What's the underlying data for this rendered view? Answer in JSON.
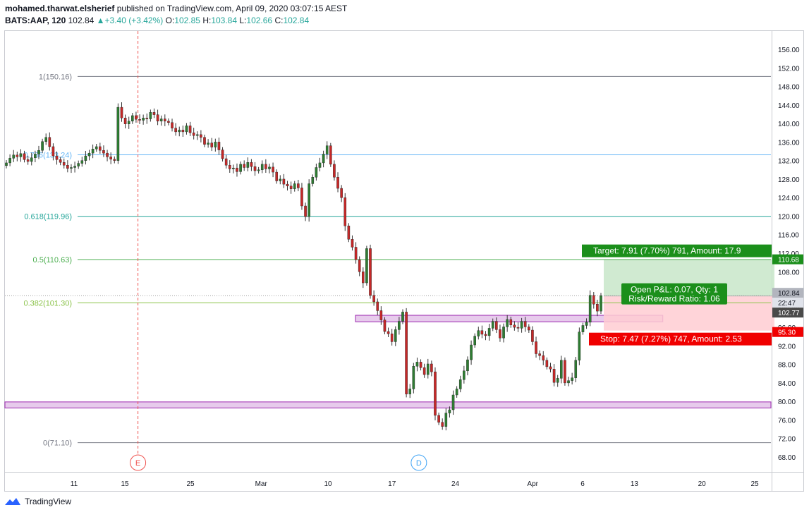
{
  "header": {
    "author": "mohamed.tharwat.elsherief",
    "published": " published on TradingView.com, April 09, 2020 03:07:15 AEST",
    "symbol": "BATS:AAP, 120",
    "last": "102.84",
    "change": "+3.40 (+3.42%)",
    "o_label": "O:",
    "o": "102.85",
    "h_label": "H:",
    "h": "103.84",
    "l_label": "L:",
    "l": "102.66",
    "c_label": "C:",
    "c": "102.84"
  },
  "footer": {
    "brand": "TradingView"
  },
  "colors": {
    "up": "#26a69a",
    "down": "#ef5350",
    "body_up": "#2e7d32",
    "body_down": "#c62828",
    "fib_1": "#787b86",
    "fib_786": "#64b5f6",
    "fib_618": "#26a69a",
    "fib_5": "#4caf50",
    "fib_382": "#8bc34a",
    "fib_0": "#787b86",
    "zone": "#e1bee7",
    "target": "#1b8f1b",
    "stop": "#f00000"
  },
  "chart_data": {
    "type": "candlestick",
    "title": "",
    "ylim": [
      64,
      158
    ],
    "y_ticks": [
      "68.00",
      "72.00",
      "76.00",
      "80.00",
      "84.00",
      "88.00",
      "92.00",
      "96.00",
      "100.00",
      "104.00",
      "108.00",
      "112.00",
      "116.00",
      "120.00",
      "124.00",
      "128.00",
      "132.00",
      "136.00",
      "140.00",
      "144.00",
      "148.00",
      "152.00",
      "156.00"
    ],
    "x_ticks": [
      {
        "label": "11",
        "date": "2020-02-11"
      },
      {
        "label": "15",
        "date": "2020-02-15"
      },
      {
        "label": "25",
        "date": "2020-02-25"
      },
      {
        "label": "Mar",
        "date": "2020-03-01"
      },
      {
        "label": "10",
        "date": "2020-03-10"
      },
      {
        "label": "17",
        "date": "2020-03-17"
      },
      {
        "label": "24",
        "date": "2020-03-24"
      },
      {
        "label": "Apr",
        "date": "2020-04-01"
      },
      {
        "label": "6",
        "date": "2020-04-06"
      },
      {
        "label": "13",
        "date": "2020-04-13"
      },
      {
        "label": "20",
        "date": "2020-04-20"
      },
      {
        "label": "25",
        "date": "2020-04-25"
      }
    ],
    "closes": [
      131.5,
      132.5,
      133.2,
      132.8,
      133.5,
      132.2,
      131.8,
      132.6,
      133.4,
      134.2,
      136.1,
      137.0,
      135.0,
      133.0,
      132.2,
      131.6,
      131.0,
      130.3,
      130.5,
      130.8,
      131.4,
      132.0,
      133.0,
      133.6,
      134.5,
      135.0,
      134.2,
      133.6,
      132.8,
      132.3,
      132.0,
      143.5,
      141.2,
      139.9,
      140.5,
      141.7,
      140.9,
      140.7,
      141.2,
      141.0,
      142.4,
      141.9,
      140.5,
      141.0,
      140.5,
      140.2,
      139.0,
      138.2,
      138.6,
      138.2,
      139.5,
      138.0,
      137.4,
      137.6,
      137.0,
      135.5,
      135.8,
      134.9,
      136.0,
      134.3,
      132.4,
      131.0,
      130.2,
      130.4,
      129.6,
      131.2,
      130.5,
      131.6,
      130.7,
      129.8,
      130.0,
      131.2,
      130.2,
      130.6,
      129.5,
      127.6,
      128.0,
      126.9,
      126.5,
      125.9,
      127.0,
      126.1,
      122.2,
      119.9,
      127.0,
      128.4,
      130.5,
      131.5,
      133.4,
      135.2,
      131.2,
      128.4,
      126.0,
      124.0,
      117.9,
      115.0,
      113.3,
      110.6,
      108.0,
      105.6,
      113.0,
      102.9,
      101.5,
      99.6,
      97.6,
      95.1,
      94.6,
      92.9,
      95.5,
      97.3,
      99.3,
      81.6,
      82.7,
      87.6,
      88.5,
      87.3,
      85.8,
      88.1,
      86.4,
      77.0,
      75.5,
      74.6,
      77.5,
      78.2,
      81.4,
      82.7,
      84.7,
      86.6,
      89.0,
      92.2,
      94.1,
      95.3,
      94.5,
      94.2,
      95.8,
      97.3,
      95.5,
      93.7,
      96.1,
      97.7,
      96.5,
      96.0,
      95.8,
      97.3,
      96.1,
      95.4,
      92.9,
      90.3,
      89.9,
      88.9,
      87.5,
      87.0,
      84.1,
      85.0,
      88.9,
      84.0,
      84.5,
      85.1,
      88.9,
      95.0,
      96.4,
      97.1,
      102.9,
      101.0,
      99.5,
      102.84
    ],
    "fib_levels": [
      {
        "label": "1(150.16)",
        "value": 150.16
      },
      {
        "label": "0.786(133.24)",
        "value": 133.24
      },
      {
        "label": "0.618(119.96)",
        "value": 119.96
      },
      {
        "label": "0.5(110.63)",
        "value": 110.63
      },
      {
        "label": "0.382(101.30)",
        "value": 101.3
      },
      {
        "label": "0(71.10)",
        "value": 71.1
      }
    ],
    "zones": [
      {
        "from": 97.2,
        "to": 98.6,
        "start_date": "2020-03-13",
        "end_date": "2020-04-16"
      },
      {
        "from": 78.6,
        "to": 79.9,
        "start_date": "2020-01-31",
        "end_date": "2020-04-29"
      }
    ],
    "price_labels": {
      "target": "110.68",
      "last": "102.84",
      "countdown": "22:47",
      "entry": "102.77",
      "stop": "95.30"
    },
    "position": {
      "target_text": "Target: 7.91 (7.70%) 791, Amount: 17.9",
      "pl_text": "Open P&L: 0.07, Qty: 1",
      "rr_text": "Risk/Reward Ratio: 1.06",
      "stop_text": "Stop: 7.47 (7.27%) 747, Amount: 2.53",
      "entry": 102.77,
      "target": 110.68,
      "stop": 95.3
    },
    "events": [
      {
        "label": "E",
        "date": "2020-02-17"
      },
      {
        "label": "D",
        "date": "2020-03-20"
      }
    ]
  }
}
